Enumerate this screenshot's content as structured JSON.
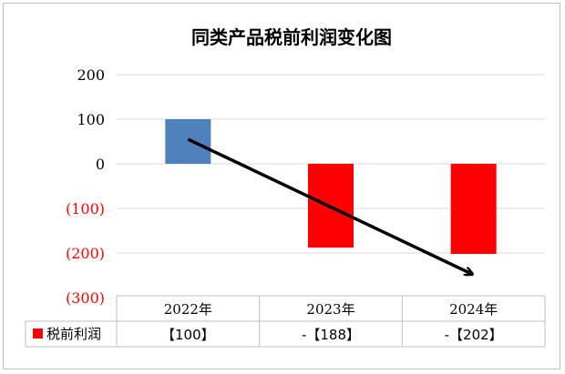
{
  "chart_data": {
    "type": "bar",
    "title": "同类产品税前利润变化图",
    "categories": [
      "2022年",
      "2023年",
      "2024年"
    ],
    "series": [
      {
        "name": "税前利润",
        "values": [
          100,
          -188,
          -202
        ],
        "table_labels": [
          "【100】",
          "-【188】",
          "-【202】"
        ],
        "colors": [
          "#4f81bd",
          "#ff0000",
          "#ff0000"
        ]
      }
    ],
    "ylim": [
      -300,
      200
    ],
    "yticks": [
      200,
      100,
      0,
      -100,
      -200,
      -300
    ],
    "ytick_labels": [
      "200",
      "100",
      "0",
      "(100)",
      "(200)",
      "(300)"
    ],
    "ytick_colors": [
      "#000000",
      "#000000",
      "#000000",
      "#ff0000",
      "#ff0000",
      "#ff0000"
    ],
    "grid": true,
    "legend": "data-table",
    "trend_arrow": {
      "from": [
        0,
        55
      ],
      "to": [
        2,
        -245
      ]
    },
    "xlabel": "",
    "ylabel": ""
  },
  "colors": {
    "gridline": "#d9d9d9",
    "arrow": "#000000",
    "legend_key": "#ff0000"
  }
}
